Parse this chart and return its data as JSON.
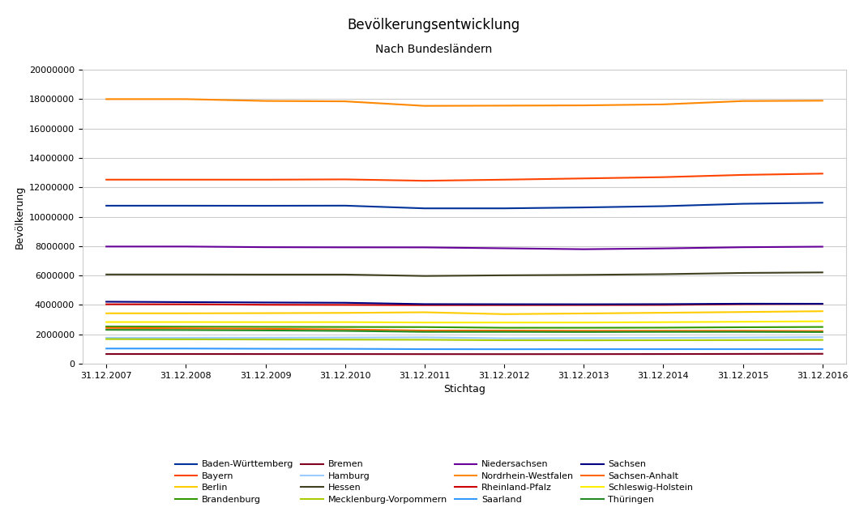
{
  "title": "Bevölkerungsentwicklung",
  "subtitle": "Nach Bundesländern",
  "xlabel": "Stichtag",
  "ylabel": "Bevölkerung",
  "years": [
    "31.12.2007",
    "31.12.2008",
    "31.12.2009",
    "31.12.2010",
    "31.12.2011",
    "31.12.2012",
    "31.12.2013",
    "31.12.2014",
    "31.12.2015",
    "31.12.2016"
  ],
  "series_order": [
    "Baden-Württemberg",
    "Bayern",
    "Berlin",
    "Brandenburg",
    "Bremen",
    "Hamburg",
    "Hessen",
    "Mecklenburg-Vorpommern",
    "Niedersachsen",
    "Nordrhein-Westfalen",
    "Rheinland-Pfalz",
    "Saarland",
    "Sachsen",
    "Sachsen-Anhalt",
    "Schleswig-Holstein",
    "Thüringen"
  ],
  "series": {
    "Baden-Württemberg": {
      "color": "#003399",
      "values": [
        10749506,
        10749755,
        10744921,
        10753880,
        10569111,
        10569681,
        10631278,
        10717419,
        10879618,
        10951893
      ]
    },
    "Bayern": {
      "color": "#FF4400",
      "values": [
        12520332,
        12519728,
        12519617,
        12538696,
        12444827,
        12519884,
        12604244,
        12691568,
        12843514,
        12930751
      ]
    },
    "Berlin": {
      "color": "#FFCC00",
      "values": [
        3431675,
        3431701,
        3442675,
        3460725,
        3501872,
        3375222,
        3421829,
        3469849,
        3520031,
        3574830
      ]
    },
    "Brandenburg": {
      "color": "#339900",
      "values": [
        2536072,
        2522493,
        2511525,
        2503273,
        2495635,
        2449511,
        2449193,
        2457872,
        2484826,
        2504040
      ]
    },
    "Bremen": {
      "color": "#800020",
      "values": [
        663979,
        663979,
        661716,
        660706,
        656871,
        654774,
        657391,
        661888,
        671489,
        678753
      ]
    },
    "Hamburg": {
      "color": "#99CCFF",
      "values": [
        1770629,
        1770629,
        1774224,
        1786448,
        1798836,
        1734272,
        1746342,
        1762791,
        1787408,
        1810438
      ]
    },
    "Hessen": {
      "color": "#404020",
      "values": [
        6072555,
        6072555,
        6067021,
        6067021,
        5971816,
        6016481,
        6045425,
        6093888,
        6176172,
        6213088
      ]
    },
    "Mecklenburg-Vorpommern": {
      "color": "#AACC00",
      "values": [
        1680197,
        1664356,
        1651216,
        1642327,
        1634734,
        1600327,
        1596505,
        1602658,
        1612362,
        1621677
      ]
    },
    "Niedersachsen": {
      "color": "#660099",
      "values": [
        7971685,
        7972636,
        7928815,
        7918293,
        7914716,
        7854004,
        7790559,
        7845491,
        7926599,
        7962775
      ]
    },
    "Nordrhein-Westfalen": {
      "color": "#FF8800",
      "values": [
        17996621,
        17996621,
        17872763,
        17845154,
        17538251,
        17554329,
        17571856,
        17638098,
        17865516,
        17890100
      ]
    },
    "Rheinland-Pfalz": {
      "color": "#CC0000",
      "values": [
        4045643,
        4045643,
        4012675,
        4003745,
        3990278,
        3990272,
        3994366,
        4002425,
        4052803,
        4073679
      ]
    },
    "Saarland": {
      "color": "#3399FF",
      "values": [
        1036598,
        1036598,
        1022585,
        1017567,
        994969,
        990509,
        994187,
        994288,
        995597,
        998897
      ]
    },
    "Sachsen": {
      "color": "#000080",
      "values": [
        4220200,
        4192801,
        4168732,
        4149477,
        4056941,
        4050152,
        4046385,
        4055274,
        4084851,
        4081308
      ]
    },
    "Sachsen-Anhalt": {
      "color": "#FF6600",
      "values": [
        2441787,
        2412472,
        2381872,
        2335006,
        2259393,
        2259393,
        2244577,
        2245470,
        2245470,
        2223081
      ]
    },
    "Schleswig-Holstein": {
      "color": "#FFEE00",
      "values": [
        2837373,
        2837373,
        2832027,
        2834260,
        2806531,
        2806531,
        2808339,
        2830244,
        2858714,
        2889821
      ]
    },
    "Thüringen": {
      "color": "#228B22",
      "values": [
        2311140,
        2296203,
        2267763,
        2235025,
        2170460,
        2170460,
        2160840,
        2170714,
        2170714,
        2158128
      ]
    }
  },
  "ylim": [
    0,
    20000000
  ],
  "yticks": [
    0,
    2000000,
    4000000,
    6000000,
    8000000,
    10000000,
    12000000,
    14000000,
    16000000,
    18000000,
    20000000
  ],
  "background_color": "#ffffff",
  "grid_color": "#cccccc",
  "title_fontsize": 12,
  "subtitle_fontsize": 10,
  "axis_label_fontsize": 9,
  "tick_fontsize": 8,
  "legend_fontsize": 8,
  "line_width": 1.5
}
